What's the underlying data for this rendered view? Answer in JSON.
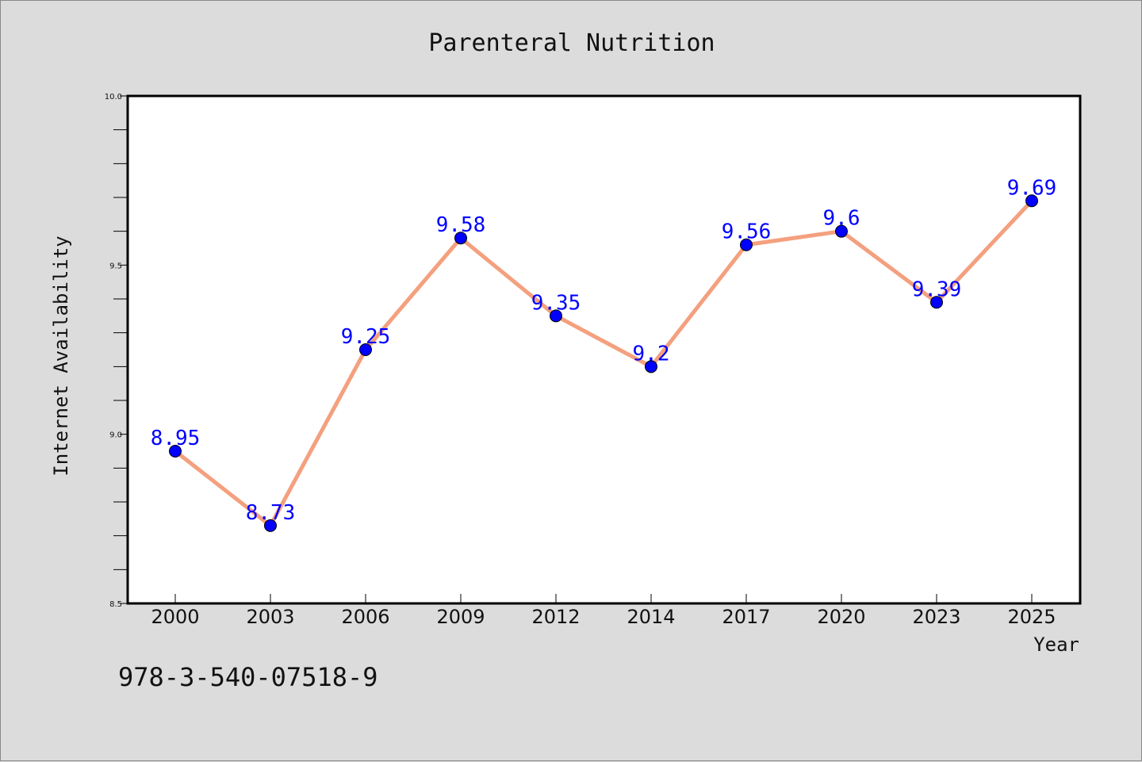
{
  "chart_data": {
    "type": "line",
    "title": "Parenteral Nutrition",
    "xlabel": "Year",
    "ylabel": "Internet Availability",
    "categories": [
      "2000",
      "2003",
      "2006",
      "2009",
      "2012",
      "2014",
      "2017",
      "2020",
      "2023",
      "2025"
    ],
    "series": [
      {
        "values": [
          8.95,
          8.73,
          9.25,
          9.58,
          9.35,
          9.2,
          9.56,
          9.6,
          9.39,
          9.69
        ],
        "data_labels": [
          "8.95",
          "8.73",
          "9.25",
          "9.58",
          "9.35",
          "9.2",
          "9.56",
          "9.6",
          "9.39",
          "9.69"
        ],
        "line_color": "#f4a07e",
        "marker_color": "#0000ff",
        "label_color": "#0000ff"
      }
    ],
    "ylim": [
      8.5,
      10.0
    ],
    "yticks": [
      "8.5",
      "9.0",
      "9.5",
      "10.0"
    ],
    "y_minor_step": 0.1,
    "grid": false,
    "legend": "none"
  },
  "annotation": {
    "text": "978-3-540-07518-9"
  },
  "colors": {
    "background": "#dcdcdc",
    "plot_background": "#ffffff",
    "axes": "#000000"
  }
}
